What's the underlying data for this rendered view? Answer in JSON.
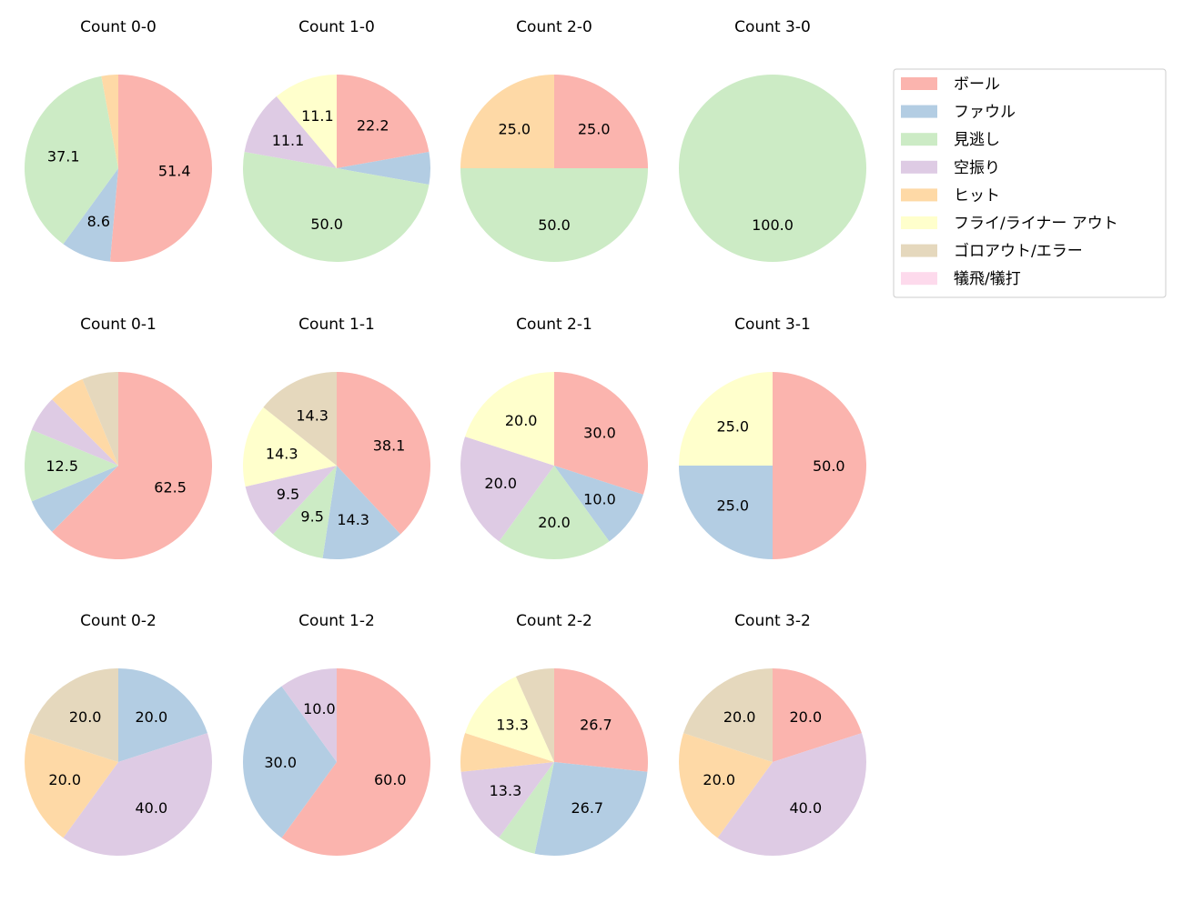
{
  "chart_data": {
    "type": "pie",
    "start_angle": 90,
    "direction": "clockwise",
    "label_format": "percent, 1 decimal",
    "categories": [
      "ボール",
      "ファウル",
      "見逃し",
      "空振り",
      "ヒット",
      "フライ/ライナー アウト",
      "ゴロアウト/エラー",
      "犠飛/犠打"
    ],
    "colors": [
      "#fbb4ae",
      "#b3cde3",
      "#ccebc5",
      "#decbe4",
      "#fed9a6",
      "#ffffcc",
      "#e5d8bd",
      "#fddaec"
    ],
    "legend": {
      "placement": "top-right"
    },
    "charts": [
      {
        "title": "Count 0-0",
        "values": [
          51.4,
          8.6,
          37.1,
          0,
          2.9,
          0,
          0,
          0
        ]
      },
      {
        "title": "Count 1-0",
        "values": [
          22.2,
          5.6,
          50.0,
          11.1,
          0,
          11.1,
          0,
          0
        ]
      },
      {
        "title": "Count 2-0",
        "values": [
          25.0,
          0,
          50.0,
          0,
          25.0,
          0,
          0,
          0
        ]
      },
      {
        "title": "Count 3-0",
        "values": [
          0,
          0,
          100.0,
          0,
          0,
          0,
          0,
          0
        ]
      },
      {
        "title": "Count 0-1",
        "values": [
          62.5,
          6.25,
          12.5,
          6.25,
          6.25,
          0,
          6.25,
          0
        ]
      },
      {
        "title": "Count 1-1",
        "values": [
          38.1,
          14.3,
          9.5,
          9.5,
          0,
          14.3,
          14.3,
          0
        ]
      },
      {
        "title": "Count 2-1",
        "values": [
          30.0,
          10.0,
          20.0,
          20.0,
          0,
          20.0,
          0,
          0
        ]
      },
      {
        "title": "Count 3-1",
        "values": [
          50.0,
          25.0,
          0,
          0,
          0,
          25.0,
          0,
          0
        ]
      },
      {
        "title": "Count 0-2",
        "values": [
          0,
          20.0,
          0,
          40.0,
          20.0,
          0,
          20.0,
          0
        ]
      },
      {
        "title": "Count 1-2",
        "values": [
          60.0,
          30.0,
          0,
          10.0,
          0,
          0,
          0,
          0
        ]
      },
      {
        "title": "Count 2-2",
        "values": [
          26.7,
          26.7,
          6.7,
          13.3,
          6.7,
          13.3,
          6.7,
          0
        ]
      },
      {
        "title": "Count 3-2",
        "values": [
          20.0,
          0,
          0,
          40.0,
          20.0,
          0,
          20.0,
          0
        ]
      }
    ]
  }
}
